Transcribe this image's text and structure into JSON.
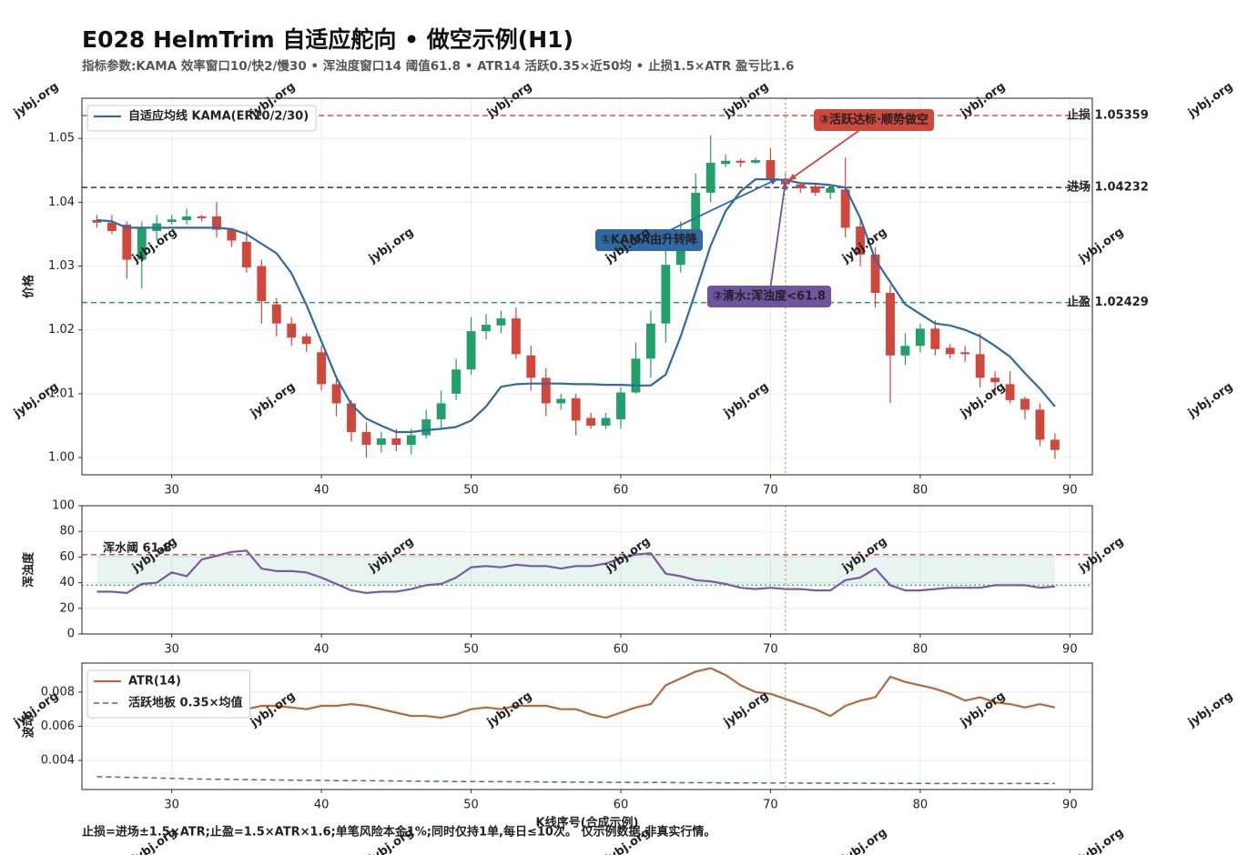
{
  "watermark": "jybj.org",
  "chart_data": [
    {
      "type": "candlestick",
      "title": "E028 HelmTrim 自适应舵向 • 做空示例(H1)",
      "subtitle": "指标参数:KAMA 效率窗口10/快2/慢30 • 浑浊度窗口14 阈值61.8 • ATR14 活跃0.35×近50均 • 止损1.5×ATR 盈亏比1.6",
      "ylabel": "价格",
      "x": [
        25,
        26,
        27,
        28,
        29,
        30,
        31,
        32,
        33,
        34,
        35,
        36,
        37,
        38,
        39,
        40,
        41,
        42,
        43,
        44,
        45,
        46,
        47,
        48,
        49,
        50,
        51,
        52,
        53,
        54,
        55,
        56,
        57,
        58,
        59,
        60,
        61,
        62,
        63,
        64,
        65,
        66,
        67,
        68,
        69,
        70,
        71,
        72,
        73,
        74,
        75,
        76,
        77,
        78,
        79,
        80,
        81,
        82,
        83,
        84,
        85,
        86,
        87,
        88,
        89
      ],
      "open": [
        1.0372,
        1.0368,
        1.0365,
        1.031,
        1.0355,
        1.0369,
        1.0372,
        1.0378,
        1.0378,
        1.0357,
        1.0338,
        1.03,
        1.024,
        1.021,
        1.019,
        1.0165,
        1.0115,
        1.0085,
        1.004,
        1.002,
        1.003,
        1.002,
        1.0035,
        1.006,
        1.01,
        1.0138,
        1.0198,
        1.0207,
        1.0218,
        1.016,
        1.0125,
        1.0085,
        1.0093,
        1.0062,
        1.005,
        1.006,
        1.0102,
        1.0155,
        1.021,
        1.0302,
        1.035,
        1.0415,
        1.046,
        1.0465,
        1.0462,
        1.0466,
        1.0437,
        1.0428,
        1.0425,
        1.0415,
        1.042,
        1.0362,
        1.0318,
        1.0258,
        1.016,
        1.0175,
        1.0202,
        1.0172,
        1.0165,
        1.0162,
        1.0125,
        1.0115,
        1.0092,
        1.0075,
        1.0028
      ],
      "high": [
        1.038,
        1.038,
        1.037,
        1.037,
        1.038,
        1.038,
        1.039,
        1.038,
        1.04,
        1.036,
        1.0355,
        1.031,
        1.025,
        1.022,
        1.0195,
        1.0175,
        1.0125,
        1.009,
        1.0055,
        1.004,
        1.0045,
        1.0045,
        1.0075,
        1.0105,
        1.0155,
        1.022,
        1.0225,
        1.023,
        1.0235,
        1.0175,
        1.014,
        1.01,
        1.01,
        1.007,
        1.007,
        1.011,
        1.018,
        1.023,
        1.033,
        1.037,
        1.0445,
        1.0505,
        1.0475,
        1.0468,
        1.047,
        1.0485,
        1.0445,
        1.043,
        1.043,
        1.0428,
        1.047,
        1.0375,
        1.033,
        1.027,
        1.0195,
        1.021,
        1.0215,
        1.0178,
        1.0175,
        1.0195,
        1.0135,
        1.0135,
        1.0095,
        1.0085,
        1.0038
      ],
      "low": [
        1.036,
        1.035,
        1.028,
        1.0265,
        1.034,
        1.0365,
        1.0365,
        1.037,
        1.0345,
        1.033,
        1.029,
        1.021,
        1.019,
        1.0175,
        1.0165,
        1.0105,
        1.0065,
        1.0025,
        1.0,
        1.0008,
        1.001,
        1.0005,
        1.003,
        1.0045,
        1.009,
        1.013,
        1.0185,
        1.0195,
        1.0155,
        1.0105,
        1.0065,
        1.0075,
        1.0035,
        1.0045,
        1.0045,
        1.0045,
        1.01,
        1.0125,
        1.018,
        1.029,
        1.0335,
        1.04,
        1.0455,
        1.0455,
        1.046,
        1.043,
        1.0422,
        1.0415,
        1.041,
        1.0405,
        1.0345,
        1.03,
        1.0235,
        1.0085,
        1.0145,
        1.0165,
        1.016,
        1.0155,
        1.015,
        1.011,
        1.01,
        1.0085,
        1.006,
        1.0018,
        0.9998
      ],
      "close": [
        1.0368,
        1.0355,
        1.031,
        1.036,
        1.0367,
        1.0373,
        1.0378,
        1.0375,
        1.0357,
        1.034,
        1.0298,
        1.0245,
        1.021,
        1.0188,
        1.0178,
        1.0115,
        1.0085,
        1.004,
        1.002,
        1.003,
        1.002,
        1.0035,
        1.006,
        1.0085,
        1.0138,
        1.0198,
        1.0208,
        1.0218,
        1.0162,
        1.0125,
        1.0085,
        1.0092,
        1.0058,
        1.005,
        1.0062,
        1.0102,
        1.0155,
        1.021,
        1.0302,
        1.035,
        1.0415,
        1.0462,
        1.0465,
        1.0462,
        1.0466,
        1.0436,
        1.0428,
        1.0422,
        1.0415,
        1.0422,
        1.036,
        1.0318,
        1.0258,
        1.016,
        1.0175,
        1.0202,
        1.017,
        1.0162,
        1.0162,
        1.0125,
        1.0118,
        1.009,
        1.0075,
        1.0028,
        1.0012
      ],
      "up_color": "#22a06b",
      "down_color": "#d0473c",
      "series": [
        {
          "name": "自适应均线 KAMA(ER10/2/30)",
          "color": "#2f6aa3",
          "values": [
            1.0372,
            1.037,
            1.036,
            1.036,
            1.036,
            1.036,
            1.036,
            1.036,
            1.036,
            1.0358,
            1.035,
            1.0335,
            1.032,
            1.0289,
            1.0239,
            1.0182,
            1.0125,
            1.0083,
            1.0061,
            1.005,
            1.004,
            1.004,
            1.0043,
            1.0045,
            1.0048,
            1.0058,
            1.008,
            1.0111,
            1.0115,
            1.0116,
            1.0116,
            1.0116,
            1.0115,
            1.0115,
            1.0114,
            1.0114,
            1.0113,
            1.0113,
            1.013,
            1.019,
            1.026,
            1.0332,
            1.0386,
            1.0417,
            1.0436,
            1.0436,
            1.0435,
            1.043,
            1.0429,
            1.0427,
            1.0423,
            1.0375,
            1.031,
            1.0275,
            1.024,
            1.0225,
            1.021,
            1.0207,
            1.02,
            1.019,
            1.0175,
            1.0158,
            1.0132,
            1.0108,
            1.008
          ]
        }
      ],
      "hlines": [
        {
          "label": "止损 1.05359",
          "value": 1.05359,
          "color": "#c9473d"
        },
        {
          "label": "进场 1.04232",
          "value": 1.04232,
          "color": "#222222"
        },
        {
          "label": "止盈 1.02429",
          "value": 1.02429,
          "color": "#2a9d6f"
        }
      ],
      "vline": 71,
      "vline_color": "#d9a15a",
      "annotations": [
        {
          "text": "①KAMA由升转降",
          "xy": [
            70.5,
            1.0437
          ],
          "color": "#2f6aa3"
        },
        {
          "text": "②清水:浑浊度<61.8",
          "xy": [
            71,
            1.0432
          ],
          "color": "#6f54a0"
        },
        {
          "text": "③活跃达标·顺势做空",
          "xy": [
            71.2,
            1.0434
          ],
          "color": "#d0473c"
        }
      ],
      "xlim": [
        24.0,
        91.5
      ],
      "ylim": [
        0.9973,
        1.0563
      ],
      "xticks": [
        30,
        40,
        50,
        60,
        70,
        80,
        90
      ],
      "yticks": [
        {
          "value": 1,
          "label": "1.00"
        },
        1.01,
        1.02,
        1.03,
        1.04,
        1.05
      ],
      "grid": true,
      "legend": "upper left"
    },
    {
      "type": "line",
      "ylabel": "浑浊度",
      "x": [
        25,
        26,
        27,
        28,
        29,
        30,
        31,
        32,
        33,
        34,
        35,
        36,
        37,
        38,
        39,
        40,
        41,
        42,
        43,
        44,
        45,
        46,
        47,
        48,
        49,
        50,
        51,
        52,
        53,
        54,
        55,
        56,
        57,
        58,
        59,
        60,
        61,
        62,
        63,
        64,
        65,
        66,
        67,
        68,
        69,
        70,
        71,
        72,
        73,
        74,
        75,
        76,
        77,
        78,
        79,
        80,
        81,
        82,
        83,
        84,
        85,
        86,
        87,
        88,
        89
      ],
      "series": [
        {
          "color": "#7a5aa6",
          "values": [
            33,
            33,
            32,
            39,
            40,
            48,
            45,
            58,
            61,
            64,
            65,
            51,
            49,
            49,
            48,
            44,
            39,
            34,
            32,
            33,
            33,
            35,
            38,
            39,
            44,
            52,
            53,
            52,
            54,
            53,
            53,
            51,
            53,
            53,
            55,
            59,
            62,
            63,
            47,
            45,
            42,
            41,
            39,
            36,
            35,
            36,
            35,
            35,
            34,
            34,
            42,
            44,
            51,
            38,
            34,
            34,
            35,
            36,
            36,
            36,
            38,
            38,
            38,
            36,
            37
          ]
        }
      ],
      "hlines": [
        {
          "label": "浑水阈 61.8",
          "value": 61.8,
          "color": "#c9473d"
        },
        {
          "value": 38,
          "color": "#3aa57a"
        }
      ],
      "band_color": "#3aa57a",
      "xlim": [
        24.0,
        91.5
      ],
      "ylim": [
        0,
        100
      ],
      "xticks": [
        30,
        40,
        50,
        60,
        70,
        80,
        90
      ],
      "yticks": [
        0,
        20,
        40,
        60,
        80,
        100
      ],
      "grid": true
    },
    {
      "type": "line",
      "ylabel": "波动",
      "xlabel": "K线序号(合成示例)",
      "note": "止损=进场±1.5×ATR;止盈=1.5×ATR×1.6;单笔风险本金1%;同时仅持1单,每日≤10次。  仅示例数据,非真实行情。",
      "x": [
        25,
        26,
        27,
        28,
        29,
        30,
        31,
        32,
        33,
        34,
        35,
        36,
        37,
        38,
        39,
        40,
        41,
        42,
        43,
        44,
        45,
        46,
        47,
        48,
        49,
        50,
        51,
        52,
        53,
        54,
        55,
        56,
        57,
        58,
        59,
        60,
        61,
        62,
        63,
        64,
        65,
        66,
        67,
        68,
        69,
        70,
        71,
        72,
        73,
        74,
        75,
        76,
        77,
        78,
        79,
        80,
        81,
        82,
        83,
        84,
        85,
        86,
        87,
        88,
        89
      ],
      "series": [
        {
          "name": "ATR(14)",
          "color": "#b5683a",
          "values": [
            0.0072,
            0.0071,
            0.0071,
            0.0071,
            0.007,
            0.007,
            0.007,
            0.0066,
            0.0066,
            0.0066,
            0.007,
            0.0072,
            0.0072,
            0.0071,
            0.007,
            0.0072,
            0.0072,
            0.0073,
            0.0072,
            0.007,
            0.0068,
            0.0066,
            0.0066,
            0.0065,
            0.0067,
            0.007,
            0.0071,
            0.007,
            0.0072,
            0.0072,
            0.0072,
            0.007,
            0.007,
            0.0067,
            0.0065,
            0.0068,
            0.0071,
            0.0073,
            0.0084,
            0.0088,
            0.0092,
            0.0094,
            0.009,
            0.0084,
            0.008,
            0.0079,
            0.0076,
            0.0073,
            0.007,
            0.0066,
            0.0072,
            0.0075,
            0.0077,
            0.0089,
            0.0086,
            0.0084,
            0.0082,
            0.0079,
            0.0075,
            0.0077,
            0.0074,
            0.0073,
            0.0071,
            0.0073,
            0.0071
          ]
        },
        {
          "name": "活跃地板 0.35×均值",
          "color": "#5a6a80",
          "dashed": true,
          "values": [
            0.00305,
            0.00303,
            0.00301,
            0.00299,
            0.00297,
            0.00295,
            0.00293,
            0.00291,
            0.0029,
            0.00289,
            0.00288,
            0.00287,
            0.00286,
            0.00285,
            0.00284,
            0.00283,
            0.00282,
            0.00282,
            0.00281,
            0.00281,
            0.0028,
            0.00279,
            0.00278,
            0.00278,
            0.00277,
            0.00277,
            0.00276,
            0.00276,
            0.00275,
            0.00275,
            0.00274,
            0.00274,
            0.00273,
            0.00273,
            0.00272,
            0.00272,
            0.00271,
            0.00271,
            0.00271,
            0.0027,
            0.0027,
            0.0027,
            0.00269,
            0.00269,
            0.00269,
            0.00268,
            0.00268,
            0.00268,
            0.00267,
            0.00267,
            0.00267,
            0.00267,
            0.00266,
            0.00266,
            0.00266,
            0.00266,
            0.00265,
            0.00265,
            0.00265,
            0.00265,
            0.00265,
            0.00265,
            0.00265,
            0.00265,
            0.00265
          ]
        }
      ],
      "xlim": [
        24.0,
        91.5
      ],
      "ylim": [
        0.0023,
        0.0097
      ],
      "xticks": [
        30,
        40,
        50,
        60,
        70,
        80,
        90
      ],
      "yticks": [
        0.004,
        0.006,
        0.008
      ],
      "grid": true,
      "legend": "upper left"
    }
  ]
}
